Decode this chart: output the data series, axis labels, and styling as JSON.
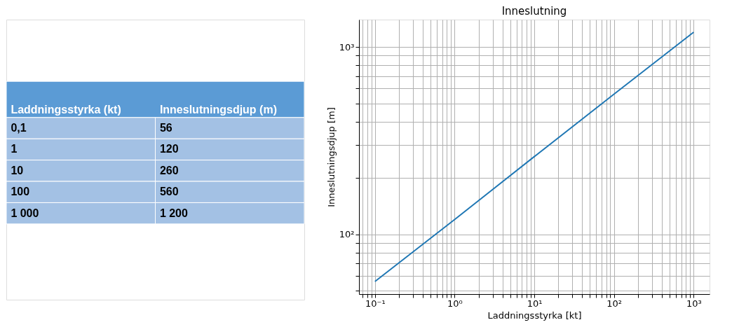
{
  "chart_data": [
    {
      "type": "other",
      "xlabel": "Laddningsstyrka (kt)",
      "ylabel": "Inneslutningsdjup (m)",
      "categories": [
        "0,1",
        "1",
        "10",
        "100",
        "1 000"
      ],
      "value_labels": [
        "56",
        "120",
        "260",
        "560",
        "1 200"
      ]
    },
    {
      "type": "line",
      "title": "Inneslutning",
      "xlabel": "Laddningsstyrka [kt]",
      "ylabel": "Inneslutningsdjup [m]",
      "log": "xy",
      "grid": true,
      "x": [
        0.1,
        1,
        10,
        100,
        1000
      ],
      "series": [
        {
          "color": "#1f77b4",
          "values": [
            56,
            120,
            260,
            560,
            1200
          ]
        }
      ],
      "xlim": [
        0.063,
        1585
      ],
      "ylim": [
        48,
        1400
      ],
      "xticks": [
        {
          "value": 0.07,
          "label": null
        },
        {
          "value": 0.08,
          "label": null
        },
        {
          "value": 0.09,
          "label": null
        },
        {
          "value": 0.1,
          "label": "10⁻¹"
        },
        {
          "value": 0.2,
          "label": null
        },
        {
          "value": 0.3,
          "label": null
        },
        {
          "value": 0.4,
          "label": null
        },
        {
          "value": 0.5,
          "label": null
        },
        {
          "value": 0.6,
          "label": null
        },
        {
          "value": 0.7,
          "label": null
        },
        {
          "value": 0.8,
          "label": null
        },
        {
          "value": 0.9,
          "label": null
        },
        {
          "value": 1,
          "label": "10⁰"
        },
        {
          "value": 2,
          "label": null
        },
        {
          "value": 3,
          "label": null
        },
        {
          "value": 4,
          "label": null
        },
        {
          "value": 5,
          "label": null
        },
        {
          "value": 6,
          "label": null
        },
        {
          "value": 7,
          "label": null
        },
        {
          "value": 8,
          "label": null
        },
        {
          "value": 9,
          "label": null
        },
        {
          "value": 10,
          "label": "10¹"
        },
        {
          "value": 20,
          "label": null
        },
        {
          "value": 30,
          "label": null
        },
        {
          "value": 40,
          "label": null
        },
        {
          "value": 50,
          "label": null
        },
        {
          "value": 60,
          "label": null
        },
        {
          "value": 70,
          "label": null
        },
        {
          "value": 80,
          "label": null
        },
        {
          "value": 90,
          "label": null
        },
        {
          "value": 100,
          "label": "10²"
        },
        {
          "value": 200,
          "label": null
        },
        {
          "value": 300,
          "label": null
        },
        {
          "value": 400,
          "label": null
        },
        {
          "value": 500,
          "label": null
        },
        {
          "value": 600,
          "label": null
        },
        {
          "value": 700,
          "label": null
        },
        {
          "value": 800,
          "label": null
        },
        {
          "value": 900,
          "label": null
        },
        {
          "value": 1000,
          "label": "10³"
        }
      ],
      "yticks": [
        {
          "value": 50,
          "label": null
        },
        {
          "value": 60,
          "label": null
        },
        {
          "value": 70,
          "label": null
        },
        {
          "value": 80,
          "label": null
        },
        {
          "value": 90,
          "label": null
        },
        {
          "value": 100,
          "label": "10²"
        },
        {
          "value": 200,
          "label": null
        },
        {
          "value": 300,
          "label": null
        },
        {
          "value": 400,
          "label": null
        },
        {
          "value": 500,
          "label": null
        },
        {
          "value": 600,
          "label": null
        },
        {
          "value": 700,
          "label": null
        },
        {
          "value": 800,
          "label": null
        },
        {
          "value": 900,
          "label": null
        },
        {
          "value": 1000,
          "label": "10³"
        }
      ]
    }
  ]
}
